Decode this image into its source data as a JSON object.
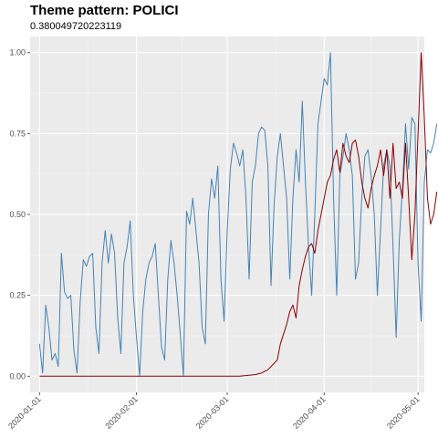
{
  "chart_data": {
    "type": "line",
    "title": "Theme pattern: POLICI",
    "subtitle": "0.380049720223119",
    "xlabel": "",
    "ylabel": "",
    "xlim": [
      "2019-12-29",
      "2020-05-03"
    ],
    "ylim": [
      -0.05,
      1.05
    ],
    "grid": true,
    "y_ticks": [
      {
        "value": 0,
        "label": "0.00"
      },
      {
        "value": 0.25,
        "label": "0.25"
      },
      {
        "value": 0.5,
        "label": "0.50"
      },
      {
        "value": 0.75,
        "label": "0.75"
      },
      {
        "value": 1,
        "label": "1.00"
      }
    ],
    "x_ticks": [
      {
        "date": "2020-01-01",
        "label": "2020-01-01"
      },
      {
        "date": "2020-02-01",
        "label": "2020-02-01"
      },
      {
        "date": "2020-03-01",
        "label": "2020-03-01"
      },
      {
        "date": "2020-04-01",
        "label": "2020-04-01"
      },
      {
        "date": "2020-05-01",
        "label": "2020-05-01"
      }
    ],
    "series": [
      {
        "color": "#4682b4",
        "points": [
          [
            "2020-01-01",
            0.1
          ],
          [
            "2020-01-02",
            0.01
          ],
          [
            "2020-01-03",
            0.22
          ],
          [
            "2020-01-04",
            0.15
          ],
          [
            "2020-01-05",
            0.05
          ],
          [
            "2020-01-06",
            0.07
          ],
          [
            "2020-01-07",
            0.03
          ],
          [
            "2020-01-08",
            0.38
          ],
          [
            "2020-01-09",
            0.26
          ],
          [
            "2020-01-10",
            0.24
          ],
          [
            "2020-01-11",
            0.25
          ],
          [
            "2020-01-12",
            0.08
          ],
          [
            "2020-01-13",
            0.01
          ],
          [
            "2020-01-14",
            0.23
          ],
          [
            "2020-01-15",
            0.36
          ],
          [
            "2020-01-16",
            0.34
          ],
          [
            "2020-01-17",
            0.37
          ],
          [
            "2020-01-18",
            0.38
          ],
          [
            "2020-01-19",
            0.15
          ],
          [
            "2020-01-20",
            0.07
          ],
          [
            "2020-01-21",
            0.35
          ],
          [
            "2020-01-22",
            0.45
          ],
          [
            "2020-01-23",
            0.35
          ],
          [
            "2020-01-24",
            0.44
          ],
          [
            "2020-01-25",
            0.38
          ],
          [
            "2020-01-26",
            0.18
          ],
          [
            "2020-01-27",
            0.07
          ],
          [
            "2020-01-28",
            0.35
          ],
          [
            "2020-01-29",
            0.4
          ],
          [
            "2020-01-30",
            0.48
          ],
          [
            "2020-01-31",
            0.25
          ],
          [
            "2020-02-01",
            0.12
          ],
          [
            "2020-02-02",
            0.0
          ],
          [
            "2020-02-03",
            0.2
          ],
          [
            "2020-02-04",
            0.3
          ],
          [
            "2020-02-05",
            0.35
          ],
          [
            "2020-02-06",
            0.37
          ],
          [
            "2020-02-07",
            0.41
          ],
          [
            "2020-02-08",
            0.25
          ],
          [
            "2020-02-09",
            0.09
          ],
          [
            "2020-02-10",
            0.05
          ],
          [
            "2020-02-11",
            0.3
          ],
          [
            "2020-02-12",
            0.42
          ],
          [
            "2020-02-13",
            0.35
          ],
          [
            "2020-02-14",
            0.25
          ],
          [
            "2020-02-15",
            0.13
          ],
          [
            "2020-02-16",
            0.0
          ],
          [
            "2020-02-17",
            0.51
          ],
          [
            "2020-02-18",
            0.47
          ],
          [
            "2020-02-19",
            0.55
          ],
          [
            "2020-02-20",
            0.45
          ],
          [
            "2020-02-21",
            0.35
          ],
          [
            "2020-02-22",
            0.15
          ],
          [
            "2020-02-23",
            0.1
          ],
          [
            "2020-02-24",
            0.5
          ],
          [
            "2020-02-25",
            0.61
          ],
          [
            "2020-02-26",
            0.55
          ],
          [
            "2020-02-27",
            0.65
          ],
          [
            "2020-02-28",
            0.3
          ],
          [
            "2020-02-29",
            0.17
          ],
          [
            "2020-03-01",
            0.45
          ],
          [
            "2020-03-02",
            0.64
          ],
          [
            "2020-03-03",
            0.72
          ],
          [
            "2020-03-04",
            0.69
          ],
          [
            "2020-03-05",
            0.65
          ],
          [
            "2020-03-06",
            0.7
          ],
          [
            "2020-03-07",
            0.55
          ],
          [
            "2020-03-08",
            0.3
          ],
          [
            "2020-03-09",
            0.6
          ],
          [
            "2020-03-10",
            0.65
          ],
          [
            "2020-03-11",
            0.75
          ],
          [
            "2020-03-12",
            0.77
          ],
          [
            "2020-03-13",
            0.76
          ],
          [
            "2020-03-14",
            0.65
          ],
          [
            "2020-03-15",
            0.28
          ],
          [
            "2020-03-16",
            0.53
          ],
          [
            "2020-03-17",
            0.68
          ],
          [
            "2020-03-18",
            0.75
          ],
          [
            "2020-03-19",
            0.65
          ],
          [
            "2020-03-20",
            0.55
          ],
          [
            "2020-03-21",
            0.3
          ],
          [
            "2020-03-22",
            0.55
          ],
          [
            "2020-03-23",
            0.7
          ],
          [
            "2020-03-24",
            0.6
          ],
          [
            "2020-03-25",
            0.85
          ],
          [
            "2020-03-26",
            0.6
          ],
          [
            "2020-03-27",
            0.4
          ],
          [
            "2020-03-28",
            0.25
          ],
          [
            "2020-03-29",
            0.5
          ],
          [
            "2020-03-30",
            0.78
          ],
          [
            "2020-03-31",
            0.85
          ],
          [
            "2020-04-01",
            0.92
          ],
          [
            "2020-04-02",
            0.9
          ],
          [
            "2020-04-03",
            1.0
          ],
          [
            "2020-04-04",
            0.55
          ],
          [
            "2020-04-05",
            0.25
          ],
          [
            "2020-04-06",
            0.62
          ],
          [
            "2020-04-07",
            0.68
          ],
          [
            "2020-04-08",
            0.75
          ],
          [
            "2020-04-09",
            0.7
          ],
          [
            "2020-04-10",
            0.62
          ],
          [
            "2020-04-11",
            0.3
          ],
          [
            "2020-04-12",
            0.35
          ],
          [
            "2020-04-13",
            0.55
          ],
          [
            "2020-04-14",
            0.68
          ],
          [
            "2020-04-15",
            0.7
          ],
          [
            "2020-04-16",
            0.62
          ],
          [
            "2020-04-17",
            0.5
          ],
          [
            "2020-04-18",
            0.25
          ],
          [
            "2020-04-19",
            0.45
          ],
          [
            "2020-04-20",
            0.65
          ],
          [
            "2020-04-21",
            0.7
          ],
          [
            "2020-04-22",
            0.65
          ],
          [
            "2020-04-23",
            0.4
          ],
          [
            "2020-04-24",
            0.12
          ],
          [
            "2020-04-25",
            0.42
          ],
          [
            "2020-04-26",
            0.58
          ],
          [
            "2020-04-27",
            0.78
          ],
          [
            "2020-04-28",
            0.64
          ],
          [
            "2020-04-29",
            0.8
          ],
          [
            "2020-04-30",
            0.78
          ],
          [
            "2020-05-01",
            0.35
          ],
          [
            "2020-05-02",
            0.17
          ],
          [
            "2020-05-03",
            0.6
          ],
          [
            "2020-05-04",
            0.7
          ],
          [
            "2020-05-05",
            0.69
          ],
          [
            "2020-05-06",
            0.72
          ],
          [
            "2020-05-07",
            0.78
          ]
        ]
      },
      {
        "color": "#8b0000",
        "points": [
          [
            "2020-01-01",
            0
          ],
          [
            "2020-03-05",
            0
          ],
          [
            "2020-03-08",
            0.003
          ],
          [
            "2020-03-10",
            0.005
          ],
          [
            "2020-03-12",
            0.01
          ],
          [
            "2020-03-14",
            0.02
          ],
          [
            "2020-03-16",
            0.04
          ],
          [
            "2020-03-17",
            0.05
          ],
          [
            "2020-03-18",
            0.1
          ],
          [
            "2020-03-19",
            0.13
          ],
          [
            "2020-03-20",
            0.16
          ],
          [
            "2020-03-21",
            0.2
          ],
          [
            "2020-03-22",
            0.22
          ],
          [
            "2020-03-23",
            0.18
          ],
          [
            "2020-03-24",
            0.28
          ],
          [
            "2020-03-25",
            0.33
          ],
          [
            "2020-03-26",
            0.37
          ],
          [
            "2020-03-27",
            0.4
          ],
          [
            "2020-03-28",
            0.41
          ],
          [
            "2020-03-29",
            0.38
          ],
          [
            "2020-03-30",
            0.45
          ],
          [
            "2020-03-31",
            0.5
          ],
          [
            "2020-04-01",
            0.55
          ],
          [
            "2020-04-02",
            0.6
          ],
          [
            "2020-04-03",
            0.62
          ],
          [
            "2020-04-04",
            0.67
          ],
          [
            "2020-04-05",
            0.7
          ],
          [
            "2020-04-06",
            0.63
          ],
          [
            "2020-04-07",
            0.72
          ],
          [
            "2020-04-08",
            0.68
          ],
          [
            "2020-04-09",
            0.66
          ],
          [
            "2020-04-10",
            0.72
          ],
          [
            "2020-04-11",
            0.73
          ],
          [
            "2020-04-12",
            0.68
          ],
          [
            "2020-04-13",
            0.6
          ],
          [
            "2020-04-14",
            0.55
          ],
          [
            "2020-04-15",
            0.52
          ],
          [
            "2020-04-16",
            0.58
          ],
          [
            "2020-04-17",
            0.62
          ],
          [
            "2020-04-18",
            0.65
          ],
          [
            "2020-04-19",
            0.7
          ],
          [
            "2020-04-20",
            0.62
          ],
          [
            "2020-04-21",
            0.7
          ],
          [
            "2020-04-22",
            0.55
          ],
          [
            "2020-04-23",
            0.72
          ],
          [
            "2020-04-24",
            0.58
          ],
          [
            "2020-04-25",
            0.6
          ],
          [
            "2020-04-26",
            0.55
          ],
          [
            "2020-04-27",
            0.72
          ],
          [
            "2020-04-28",
            0.55
          ],
          [
            "2020-04-29",
            0.36
          ],
          [
            "2020-04-30",
            0.5
          ],
          [
            "2020-05-01",
            0.75
          ],
          [
            "2020-05-02",
            1.0
          ],
          [
            "2020-05-03",
            0.8
          ],
          [
            "2020-05-04",
            0.55
          ],
          [
            "2020-05-05",
            0.47
          ],
          [
            "2020-05-06",
            0.5
          ],
          [
            "2020-05-07",
            0.57
          ]
        ]
      }
    ]
  }
}
